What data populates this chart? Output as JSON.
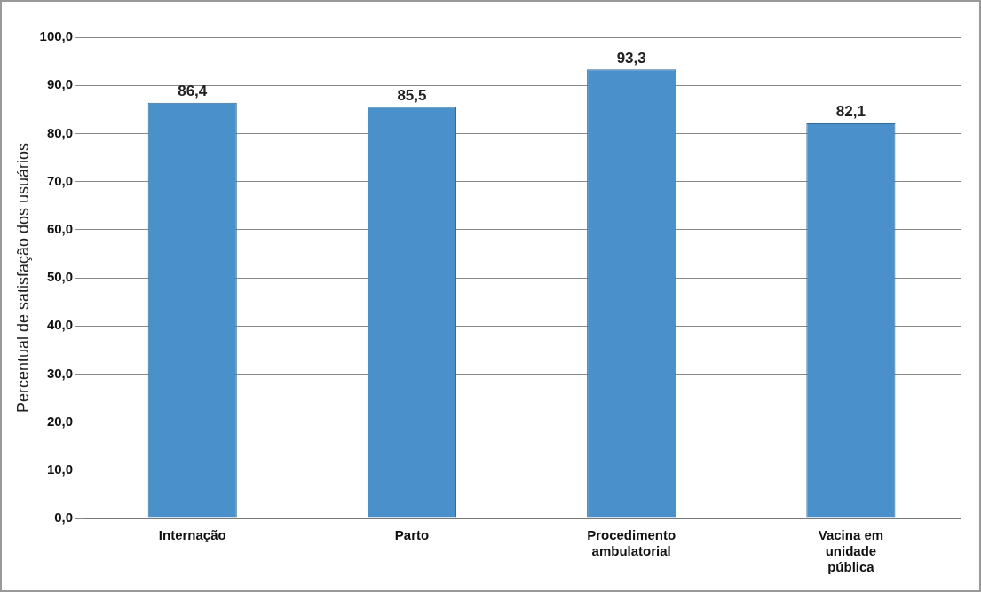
{
  "chart_data": {
    "type": "bar",
    "ylabel": "Percentual de satisfação dos usuários",
    "categories": [
      "Internação",
      "Parto",
      "Procedimento ambulatorial",
      "Vacina em unidade pública"
    ],
    "values": [
      86.4,
      85.5,
      93.3,
      82.1
    ],
    "value_labels": [
      "86,4",
      "85,5",
      "93,3",
      "82,1"
    ],
    "color": "#4a91cc",
    "ylim": [
      0,
      100
    ],
    "yticks": [
      {
        "value": 0,
        "label": "0,0"
      },
      {
        "value": 10,
        "label": "10,0"
      },
      {
        "value": 20,
        "label": "20,0"
      },
      {
        "value": 30,
        "label": "30,0"
      },
      {
        "value": 40,
        "label": "40,0"
      },
      {
        "value": 50,
        "label": "50,0"
      },
      {
        "value": 60,
        "label": "60,0"
      },
      {
        "value": 70,
        "label": "70,0"
      },
      {
        "value": 80,
        "label": "80,0"
      },
      {
        "value": 90,
        "label": "90,0"
      },
      {
        "value": 100,
        "label": "100,0"
      }
    ],
    "grid": "y",
    "legend": false
  }
}
